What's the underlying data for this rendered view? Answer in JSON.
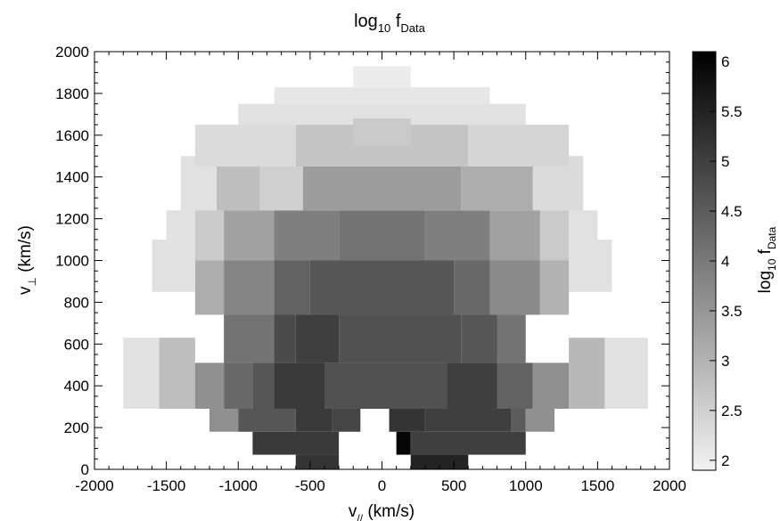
{
  "chart_data": {
    "type": "heatmap",
    "title_main": "log",
    "title_sub": "10",
    "title_sub2": "Data",
    "title_f": " f",
    "xlabel_main": "v",
    "xlabel_sub": "//",
    "xlabel_rest": " (km/s)",
    "ylabel_main": "v",
    "ylabel_sub": "⊥",
    "ylabel_rest": " (km/s)",
    "colorbar_label_main": "log",
    "colorbar_label_sub": "10",
    "colorbar_label_f": " f",
    "colorbar_label_sub2": "Data",
    "xlim": [
      -2000,
      2000
    ],
    "ylim": [
      0,
      2000
    ],
    "x_ticks": [
      "-2000",
      "-1500",
      "-1000",
      "-500",
      "0",
      "500",
      "1000",
      "1500",
      "2000"
    ],
    "y_ticks": [
      "0",
      "200",
      "400",
      "600",
      "800",
      "1000",
      "1200",
      "1400",
      "1600",
      "1800",
      "2000"
    ],
    "colorbar_range": [
      1.9,
      6.1
    ],
    "colorbar_ticks": [
      "2",
      "2.5",
      "3",
      "3.5",
      "4",
      "4.5",
      "5",
      "5.5",
      "6"
    ],
    "colormap": "gray-reversed",
    "cells": [
      {
        "x0": -600,
        "x1": -300,
        "y0": 0,
        "y1": 70,
        "v": 5.2
      },
      {
        "x0": 200,
        "x1": 600,
        "y0": 0,
        "y1": 70,
        "v": 5.5
      },
      {
        "x0": -900,
        "x1": -300,
        "y0": 70,
        "y1": 180,
        "v": 5.1
      },
      {
        "x0": 100,
        "x1": 200,
        "y0": 70,
        "y1": 180,
        "v": 6.0
      },
      {
        "x0": 200,
        "x1": 1000,
        "y0": 70,
        "y1": 180,
        "v": 5.0
      },
      {
        "x0": -1200,
        "x1": -1000,
        "y0": 180,
        "y1": 290,
        "v": 3.6
      },
      {
        "x0": -1000,
        "x1": -600,
        "y0": 180,
        "y1": 290,
        "v": 4.6
      },
      {
        "x0": -600,
        "x1": -350,
        "y0": 180,
        "y1": 290,
        "v": 5.1
      },
      {
        "x0": -350,
        "x1": -150,
        "y0": 180,
        "y1": 290,
        "v": 4.9
      },
      {
        "x0": 50,
        "x1": 300,
        "y0": 180,
        "y1": 290,
        "v": 5.2
      },
      {
        "x0": 300,
        "x1": 900,
        "y0": 180,
        "y1": 290,
        "v": 5.0
      },
      {
        "x0": 900,
        "x1": 1000,
        "y0": 180,
        "y1": 290,
        "v": 4.5
      },
      {
        "x0": 1000,
        "x1": 1200,
        "y0": 180,
        "y1": 290,
        "v": 3.6
      },
      {
        "x0": -1800,
        "x1": -1550,
        "y0": 290,
        "y1": 630,
        "v": 2.2
      },
      {
        "x0": -1550,
        "x1": -1300,
        "y0": 290,
        "y1": 630,
        "v": 2.8
      },
      {
        "x0": -1300,
        "x1": -1100,
        "y0": 290,
        "y1": 510,
        "v": 3.6
      },
      {
        "x0": -1100,
        "x1": -900,
        "y0": 290,
        "y1": 510,
        "v": 4.3
      },
      {
        "x0": -900,
        "x1": -750,
        "y0": 290,
        "y1": 510,
        "v": 4.6
      },
      {
        "x0": -750,
        "x1": -400,
        "y0": 290,
        "y1": 510,
        "v": 5.1
      },
      {
        "x0": -400,
        "x1": 450,
        "y0": 290,
        "y1": 510,
        "v": 4.7
      },
      {
        "x0": 450,
        "x1": 800,
        "y0": 290,
        "y1": 510,
        "v": 5.0
      },
      {
        "x0": 800,
        "x1": 1050,
        "y0": 290,
        "y1": 510,
        "v": 4.4
      },
      {
        "x0": 1050,
        "x1": 1300,
        "y0": 290,
        "y1": 510,
        "v": 3.6
      },
      {
        "x0": 1300,
        "x1": 1550,
        "y0": 290,
        "y1": 630,
        "v": 2.9
      },
      {
        "x0": 1550,
        "x1": 1850,
        "y0": 290,
        "y1": 630,
        "v": 2.2
      },
      {
        "x0": -1100,
        "x1": -750,
        "y0": 510,
        "y1": 740,
        "v": 4.1
      },
      {
        "x0": -750,
        "x1": -600,
        "y0": 510,
        "y1": 740,
        "v": 4.8
      },
      {
        "x0": -600,
        "x1": -300,
        "y0": 510,
        "y1": 740,
        "v": 5.0
      },
      {
        "x0": -300,
        "x1": 550,
        "y0": 510,
        "y1": 740,
        "v": 4.7
      },
      {
        "x0": 550,
        "x1": 800,
        "y0": 510,
        "y1": 740,
        "v": 4.6
      },
      {
        "x0": 800,
        "x1": 1000,
        "y0": 510,
        "y1": 740,
        "v": 4.1
      },
      {
        "x0": -1300,
        "x1": -1100,
        "y0": 740,
        "y1": 1000,
        "v": 3.1
      },
      {
        "x0": -1100,
        "x1": -750,
        "y0": 740,
        "y1": 1000,
        "v": 3.8
      },
      {
        "x0": -750,
        "x1": -500,
        "y0": 740,
        "y1": 1000,
        "v": 4.4
      },
      {
        "x0": -500,
        "x1": 500,
        "y0": 740,
        "y1": 1000,
        "v": 4.6
      },
      {
        "x0": 500,
        "x1": 750,
        "y0": 740,
        "y1": 1000,
        "v": 4.3
      },
      {
        "x0": 750,
        "x1": 1100,
        "y0": 740,
        "y1": 1000,
        "v": 3.7
      },
      {
        "x0": 1100,
        "x1": 1300,
        "y0": 740,
        "y1": 1000,
        "v": 3.0
      },
      {
        "x0": -1600,
        "x1": -1300,
        "y0": 850,
        "y1": 1100,
        "v": 2.2
      },
      {
        "x0": 1300,
        "x1": 1600,
        "y0": 850,
        "y1": 1100,
        "v": 2.2
      },
      {
        "x0": -1300,
        "x1": -1100,
        "y0": 1000,
        "y1": 1240,
        "v": 2.6
      },
      {
        "x0": -1100,
        "x1": -750,
        "y0": 1000,
        "y1": 1240,
        "v": 3.3
      },
      {
        "x0": -750,
        "x1": -300,
        "y0": 1000,
        "y1": 1240,
        "v": 3.9
      },
      {
        "x0": -300,
        "x1": 300,
        "y0": 1000,
        "y1": 1240,
        "v": 4.1
      },
      {
        "x0": 300,
        "x1": 750,
        "y0": 1000,
        "y1": 1240,
        "v": 3.9
      },
      {
        "x0": 750,
        "x1": 1100,
        "y0": 1000,
        "y1": 1240,
        "v": 3.3
      },
      {
        "x0": 1100,
        "x1": 1300,
        "y0": 1000,
        "y1": 1240,
        "v": 2.6
      },
      {
        "x0": -1500,
        "x1": -1300,
        "y0": 1100,
        "y1": 1240,
        "v": 2.2
      },
      {
        "x0": 1300,
        "x1": 1500,
        "y0": 1100,
        "y1": 1240,
        "v": 2.2
      },
      {
        "x0": -1400,
        "x1": -1150,
        "y0": 1240,
        "y1": 1500,
        "v": 2.2
      },
      {
        "x0": -1150,
        "x1": -850,
        "y0": 1240,
        "y1": 1450,
        "v": 2.8
      },
      {
        "x0": -850,
        "x1": -550,
        "y0": 1240,
        "y1": 1450,
        "v": 2.5
      },
      {
        "x0": -550,
        "x1": 550,
        "y0": 1240,
        "y1": 1450,
        "v": 3.4
      },
      {
        "x0": 550,
        "x1": 1050,
        "y0": 1240,
        "y1": 1450,
        "v": 3.1
      },
      {
        "x0": 1050,
        "x1": 1400,
        "y0": 1240,
        "y1": 1500,
        "v": 2.3
      },
      {
        "x0": -1300,
        "x1": -600,
        "y0": 1450,
        "y1": 1650,
        "v": 2.3
      },
      {
        "x0": -600,
        "x1": 600,
        "y0": 1450,
        "y1": 1650,
        "v": 2.7
      },
      {
        "x0": 600,
        "x1": 1300,
        "y0": 1450,
        "y1": 1650,
        "v": 2.4
      },
      {
        "x0": -1000,
        "x1": 1000,
        "y0": 1650,
        "y1": 1750,
        "v": 2.2
      },
      {
        "x0": -750,
        "x1": 750,
        "y0": 1750,
        "y1": 1830,
        "v": 2.1
      },
      {
        "x0": -200,
        "x1": 200,
        "y0": 1830,
        "y1": 1930,
        "v": 2.0
      },
      {
        "x0": -200,
        "x1": 200,
        "y0": 1550,
        "y1": 1680,
        "v": 2.6
      }
    ]
  }
}
